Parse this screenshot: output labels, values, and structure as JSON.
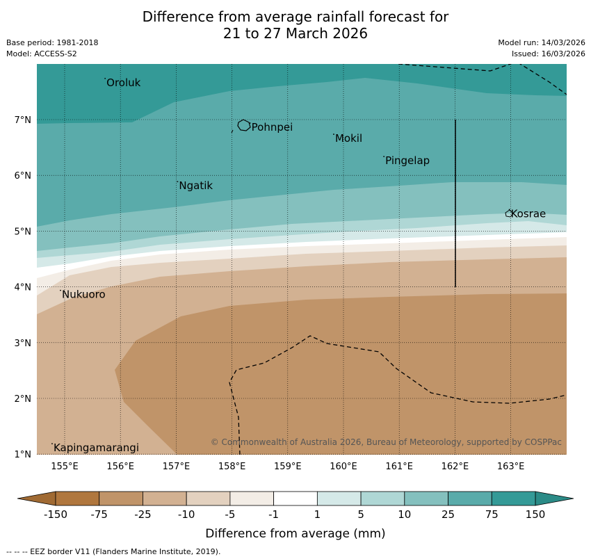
{
  "title": {
    "line1": "Difference from average rainfall forecast for",
    "line2": "21 to 27 March 2026"
  },
  "meta": {
    "base_period": "Base period: 1981-2018",
    "model": "Model: ACCESS-S2",
    "model_run": "Model run: 14/03/2026",
    "issued": "Issued: 16/03/2026"
  },
  "map": {
    "lon_labels": [
      "155°E",
      "156°E",
      "157°E",
      "158°E",
      "159°E",
      "160°E",
      "161°E",
      "162°E",
      "163°E"
    ],
    "lat_labels": [
      "7°N",
      "6°N",
      "5°N",
      "4°N",
      "3°N",
      "2°N",
      "1°N"
    ],
    "places": [
      {
        "name": "Oroluk",
        "lon": 155.75,
        "lat": 7.65
      },
      {
        "name": "Pohnpei",
        "lon": 158.35,
        "lat": 6.85
      },
      {
        "name": "Mokil",
        "lon": 159.85,
        "lat": 6.65
      },
      {
        "name": "Pingelap",
        "lon": 160.75,
        "lat": 6.25
      },
      {
        "name": "Ngatik",
        "lon": 157.05,
        "lat": 5.8
      },
      {
        "name": "Kosrae",
        "lon": 163.0,
        "lat": 5.3
      },
      {
        "name": "Nukuoro",
        "lon": 154.95,
        "lat": 3.85
      },
      {
        "name": "Kapingamarangi",
        "lon": 154.8,
        "lat": 1.1
      }
    ],
    "copyright": "© Commonwealth of Australia 2026, Bureau of Meteorology, supported by COSPPac"
  },
  "legend": {
    "ticks": [
      "-150",
      "-75",
      "-25",
      "-10",
      "-5",
      "-1",
      "1",
      "5",
      "10",
      "25",
      "75",
      "150"
    ],
    "colors": [
      "#b0773e",
      "#c09469",
      "#d2b192",
      "#e3d1bf",
      "#f3ede6",
      "#ffffff",
      "#d5e9e8",
      "#afd7d5",
      "#84c0be",
      "#5aabaa",
      "#349a97"
    ],
    "under_color": "#a06a33",
    "over_color": "#2b8b87",
    "label": "Difference from average (mm)"
  },
  "footnote": "-- -- -- EEZ border V11 (Flanders Marine Institute, 2019)."
}
